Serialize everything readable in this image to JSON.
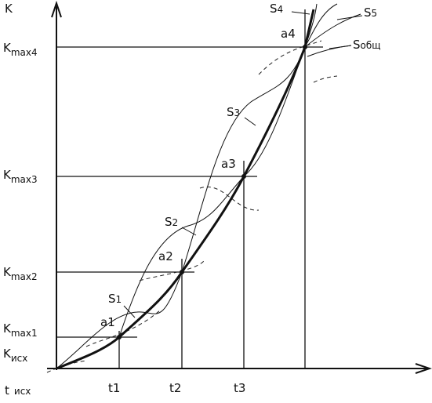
{
  "y_axis": {
    "label": "K",
    "ticks": [
      {
        "main": "K",
        "sub": "max4"
      },
      {
        "main": "K",
        "sub": "max3"
      },
      {
        "main": "K",
        "sub": "max2"
      },
      {
        "main": "K",
        "sub": "max1"
      },
      {
        "main": "K",
        "sub": "исх"
      }
    ]
  },
  "x_axis": {
    "ticks": [
      {
        "main": "t",
        "sub": "исх"
      },
      "t1",
      "t2",
      "t3"
    ]
  },
  "curves": [
    {
      "main": "S",
      "sub": "1"
    },
    {
      "main": "S",
      "sub": "2"
    },
    {
      "main": "S",
      "sub": "3"
    },
    {
      "main": "S",
      "sub": "4"
    },
    {
      "main": "S",
      "sub": "5"
    },
    {
      "main": "S",
      "sub": "общ"
    }
  ],
  "points": [
    "a1",
    "a2",
    "a3",
    "a4"
  ]
}
